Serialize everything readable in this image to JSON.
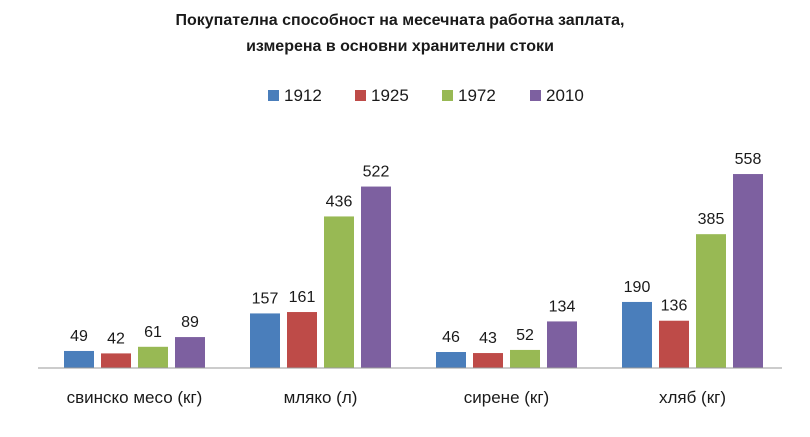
{
  "chart_data": {
    "type": "bar",
    "title_lines": [
      "Покупателна способност на месечната работна заплата,",
      "измерена в основни хранителни стоки"
    ],
    "categories": [
      "свинско месо (кг)",
      "мляко (л)",
      "сирене  (кг)",
      "хляб (кг)"
    ],
    "series": [
      {
        "name": "1912",
        "color": "#4a7ebb",
        "values": [
          49,
          157,
          46,
          190
        ]
      },
      {
        "name": "1925",
        "color": "#be4b48",
        "values": [
          42,
          161,
          43,
          136
        ]
      },
      {
        "name": "1972",
        "color": "#98b954",
        "values": [
          61,
          436,
          52,
          385
        ]
      },
      {
        "name": "2010",
        "color": "#7d60a0",
        "values": [
          89,
          522,
          134,
          558
        ]
      }
    ],
    "ylim": [
      0,
      620
    ],
    "grid": false,
    "legend_position": "top"
  }
}
